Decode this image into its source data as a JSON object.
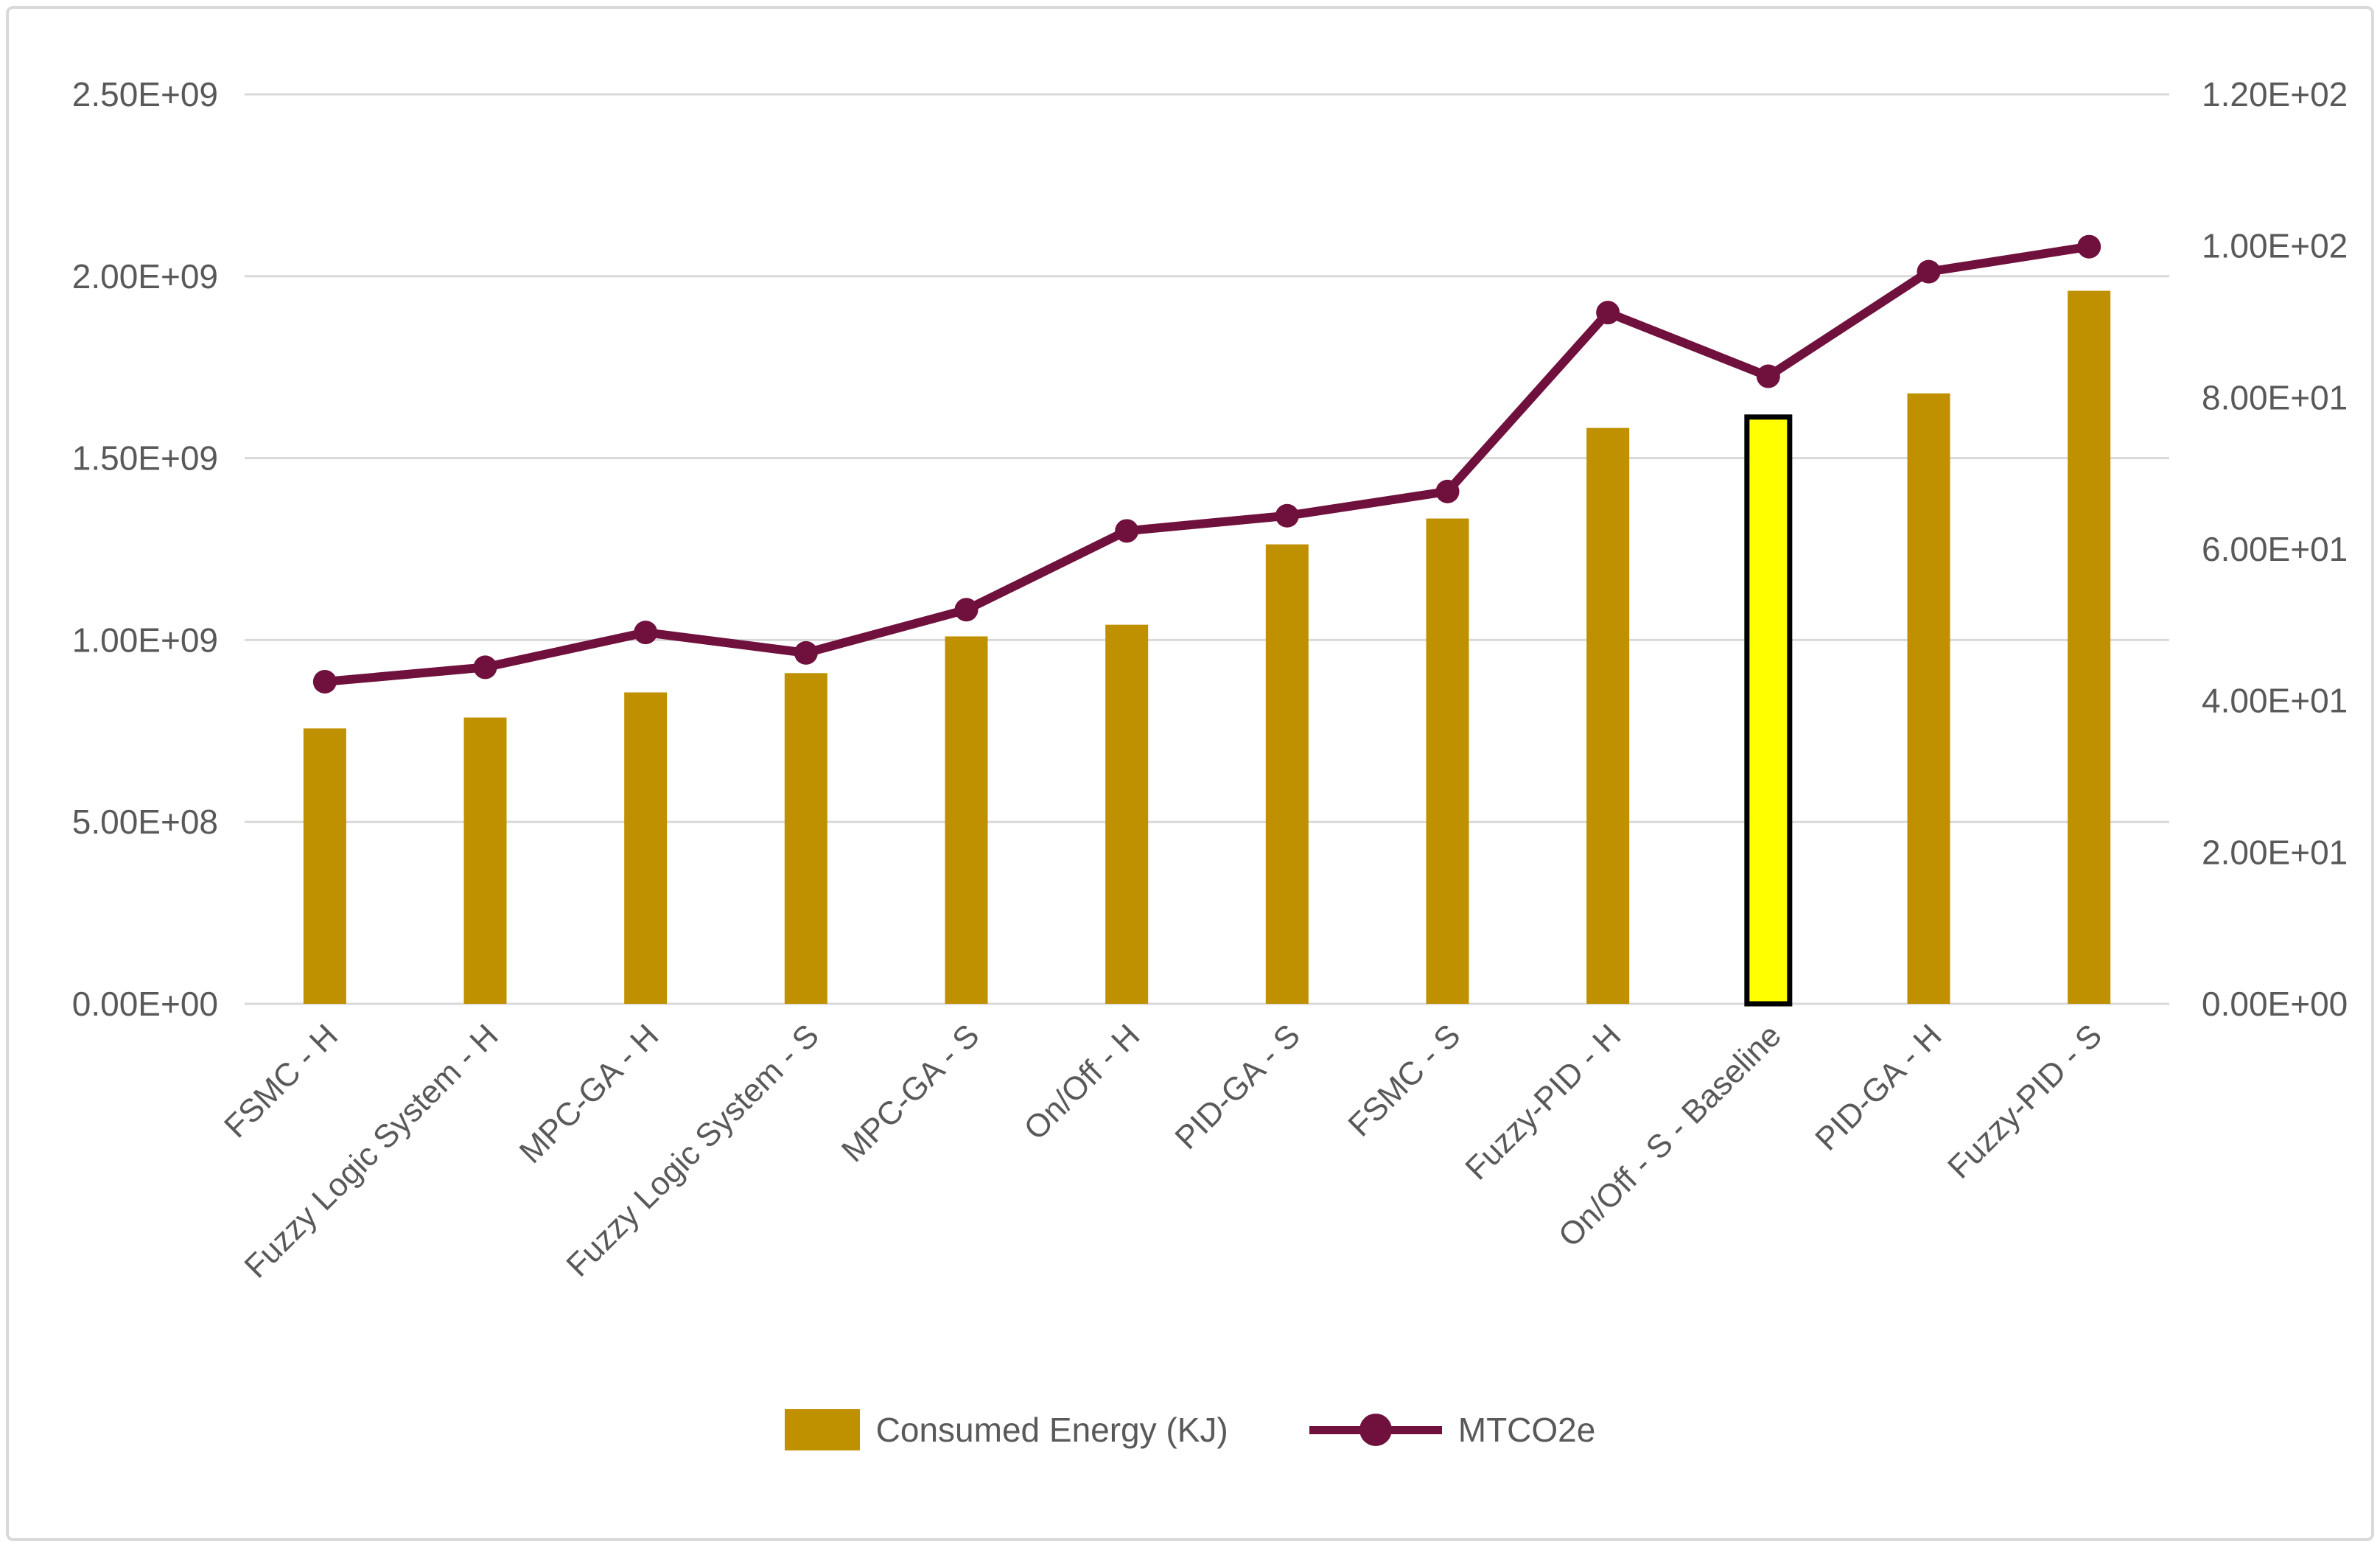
{
  "chart_data": {
    "type": "bar",
    "subtype": "combo-bar-line-dual-axis",
    "categories": [
      "FSMC - H",
      "Fuzzy Logic System - H",
      "MPC-GA - H",
      "Fuzzy Logic System - S",
      "MPC-GA - S",
      "On/Off - H",
      "PID-GA - S",
      "FSMC - S",
      "Fuzzy-PID - H",
      "On/Off - S - Baseline",
      "PID-GA - H",
      "Fuzzy-PID - S"
    ],
    "series": [
      {
        "name": "Consumed Energy (KJ)",
        "type": "bar",
        "axis": "left",
        "color": "#BF9000",
        "values": [
          757000000,
          787000000,
          856000000,
          909000000,
          1010000000,
          1042000000,
          1263000000,
          1334000000,
          1583000000,
          1613000000,
          1678000000,
          1960000000
        ]
      },
      {
        "name": "MTCO2e",
        "type": "line",
        "axis": "right",
        "color": "#70103C",
        "values": [
          42.5,
          44.4,
          49.0,
          46.3,
          52.0,
          62.4,
          64.4,
          67.6,
          91.2,
          82.8,
          96.6,
          99.9
        ]
      }
    ],
    "highlight_index": 9,
    "highlight_color": "#FFFF00",
    "highlight_border_color": "#000000",
    "left_axis": {
      "min": 0,
      "max": 2500000000,
      "step": 500000000,
      "tick_labels": [
        "0.00E+00",
        "5.00E+08",
        "1.00E+09",
        "1.50E+09",
        "2.00E+09",
        "2.50E+09"
      ]
    },
    "right_axis": {
      "min": 0,
      "max": 120,
      "step": 20,
      "tick_labels": [
        "0.00E+00",
        "2.00E+01",
        "4.00E+01",
        "6.00E+01",
        "8.00E+01",
        "1.00E+02",
        "1.20E+02"
      ]
    },
    "grid": true,
    "grid_color": "#D9D9D9",
    "text_color": "#595959",
    "legend_position": "bottom",
    "title": "",
    "xlabel": "",
    "ylabel": ""
  }
}
